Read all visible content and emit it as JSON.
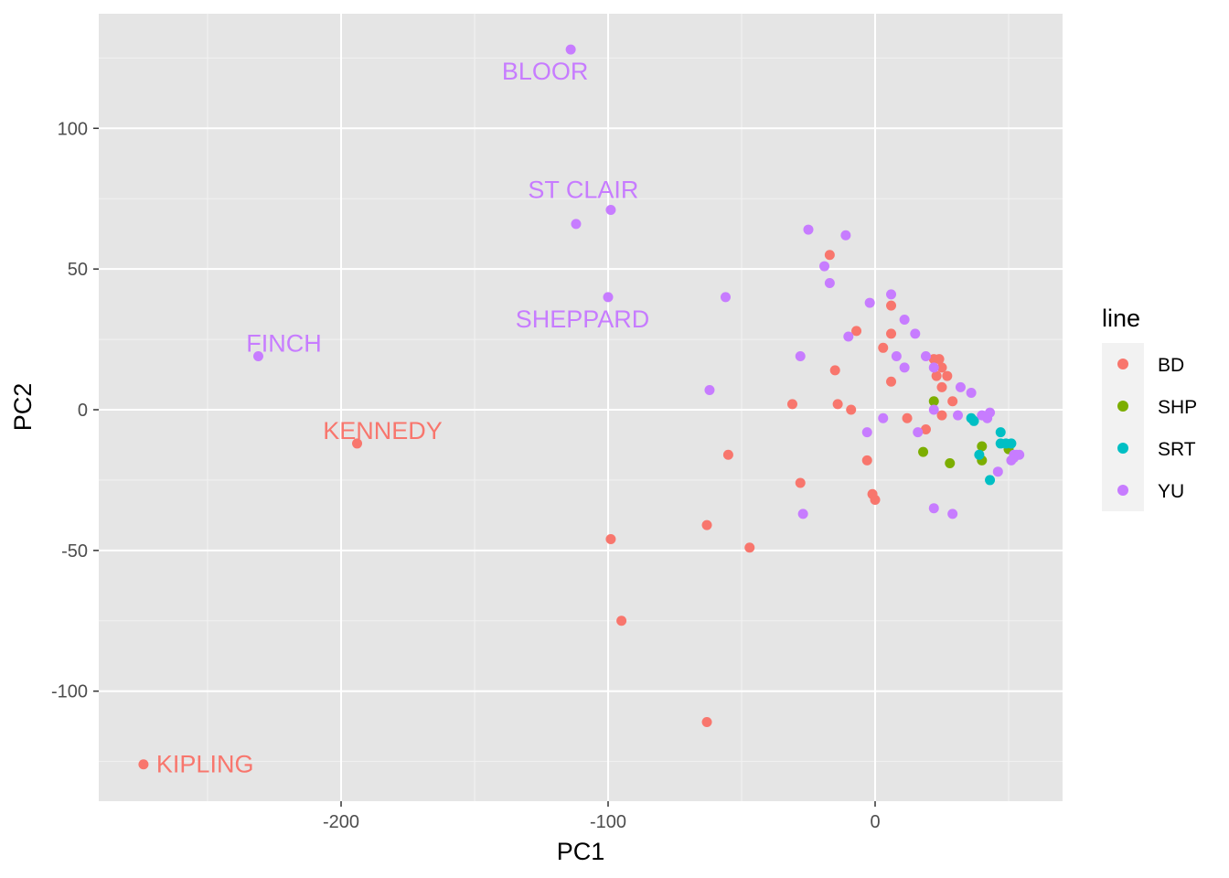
{
  "chart_data": {
    "type": "scatter",
    "title": "",
    "xlabel": "PC1",
    "ylabel": "PC2",
    "xlim": [
      -290,
      70
    ],
    "ylim": [
      -140,
      140
    ],
    "x_ticks": [
      -200,
      -100,
      0
    ],
    "x_tick_labels": [
      "-200",
      "-100",
      "0"
    ],
    "y_ticks": [
      -100,
      -50,
      0,
      50,
      100
    ],
    "y_tick_labels": [
      "-100",
      "-50",
      "0",
      "50",
      "100"
    ],
    "grid": true,
    "legend": {
      "title": "line",
      "position": "right"
    },
    "series": [
      {
        "name": "BD",
        "color": "#F8766D",
        "points": [
          [
            -274,
            -126
          ],
          [
            -194,
            -12
          ],
          [
            -63,
            -111
          ],
          [
            -95,
            -75
          ],
          [
            -99,
            -46
          ],
          [
            -63,
            -41
          ],
          [
            -47,
            -49
          ],
          [
            -55,
            -16
          ],
          [
            -28,
            -26
          ],
          [
            -31,
            2
          ],
          [
            -14,
            2
          ],
          [
            -15,
            14
          ],
          [
            -17,
            55
          ],
          [
            -9,
            0
          ],
          [
            -7,
            28
          ],
          [
            -3,
            -18
          ],
          [
            -1,
            -30
          ],
          [
            0,
            -32
          ],
          [
            3,
            22
          ],
          [
            6,
            37
          ],
          [
            6,
            27
          ],
          [
            6,
            10
          ],
          [
            12,
            -3
          ],
          [
            19,
            -7
          ],
          [
            22,
            18
          ],
          [
            24,
            18
          ],
          [
            23,
            12
          ],
          [
            25,
            15
          ],
          [
            25,
            8
          ],
          [
            25,
            -2
          ],
          [
            27,
            12
          ],
          [
            29,
            3
          ]
        ]
      },
      {
        "name": "SHP",
        "color": "#7CAE00",
        "points": [
          [
            22,
            3
          ],
          [
            18,
            -15
          ],
          [
            28,
            -19
          ],
          [
            40,
            -13
          ],
          [
            40,
            -18
          ],
          [
            50,
            -14
          ]
        ]
      },
      {
        "name": "SRT",
        "color": "#00BFC4",
        "points": [
          [
            36,
            -3
          ],
          [
            37,
            -4
          ],
          [
            39,
            -16
          ],
          [
            43,
            -25
          ],
          [
            47,
            -8
          ],
          [
            47,
            -12
          ],
          [
            49,
            -12
          ],
          [
            51,
            -12
          ]
        ]
      },
      {
        "name": "YU",
        "color": "#C77CFF",
        "points": [
          [
            -114,
            128
          ],
          [
            -99,
            71
          ],
          [
            -112,
            66
          ],
          [
            -100,
            40
          ],
          [
            -231,
            19
          ],
          [
            -56,
            40
          ],
          [
            -62,
            7
          ],
          [
            -25,
            64
          ],
          [
            -11,
            62
          ],
          [
            -19,
            51
          ],
          [
            -17,
            45
          ],
          [
            -2,
            38
          ],
          [
            6,
            41
          ],
          [
            11,
            32
          ],
          [
            15,
            27
          ],
          [
            -10,
            26
          ],
          [
            -28,
            19
          ],
          [
            8,
            19
          ],
          [
            11,
            15
          ],
          [
            19,
            19
          ],
          [
            22,
            15
          ],
          [
            32,
            8
          ],
          [
            36,
            6
          ],
          [
            22,
            0
          ],
          [
            31,
            -2
          ],
          [
            40,
            -2
          ],
          [
            42,
            -3
          ],
          [
            43,
            -1
          ],
          [
            3,
            -3
          ],
          [
            -3,
            -8
          ],
          [
            16,
            -8
          ],
          [
            -27,
            -37
          ],
          [
            22,
            -35
          ],
          [
            29,
            -37
          ],
          [
            46,
            -22
          ],
          [
            52,
            -16
          ],
          [
            53,
            -16
          ],
          [
            54,
            -16
          ],
          [
            52,
            -17
          ],
          [
            51,
            -18
          ]
        ]
      }
    ],
    "annotations": [
      {
        "text": "BLOOR",
        "x": -114,
        "y": 128,
        "series": "YU",
        "anchor": "below"
      },
      {
        "text": "ST CLAIR",
        "x": -99,
        "y": 71,
        "series": "YU",
        "anchor": "above-left"
      },
      {
        "text": "SHEPPARD",
        "x": -100,
        "y": 40,
        "series": "YU",
        "anchor": "below"
      },
      {
        "text": "FINCH",
        "x": -231,
        "y": 19,
        "series": "YU",
        "anchor": "above"
      },
      {
        "text": "KENNEDY",
        "x": -194,
        "y": -12,
        "series": "BD",
        "anchor": "above"
      },
      {
        "text": "KIPLING",
        "x": -274,
        "y": -126,
        "series": "BD",
        "anchor": "right"
      }
    ]
  },
  "colors": {
    "panel_background": "#E5E5E5",
    "grid_major": "#FFFFFF",
    "grid_minor": "#F2F2F2",
    "legend_key_background": "#F2F2F2"
  }
}
